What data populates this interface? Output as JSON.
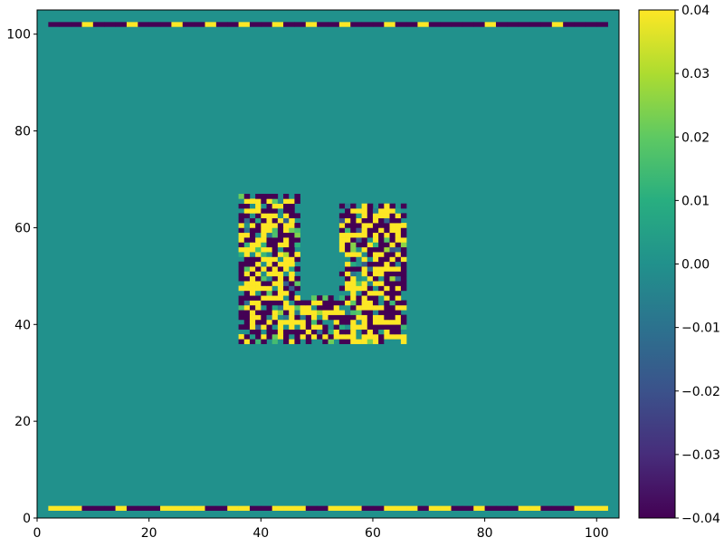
{
  "chart_data": {
    "type": "heatmap",
    "title": "",
    "xlabel": "",
    "ylabel": "",
    "xlim": [
      0,
      104
    ],
    "ylim": [
      0,
      105
    ],
    "xticks": [
      0,
      20,
      40,
      60,
      80,
      100
    ],
    "xtick_labels": [
      "0",
      "20",
      "40",
      "60",
      "80",
      "100"
    ],
    "yticks": [
      0,
      20,
      40,
      60,
      80,
      100
    ],
    "ytick_labels": [
      "0",
      "20",
      "40",
      "60",
      "80",
      "100"
    ],
    "background_value": 0.0,
    "colormap": "viridis",
    "colorbar": {
      "vmin": -0.04,
      "vmax": 0.04,
      "ticks": [
        -0.04,
        -0.03,
        -0.02,
        -0.01,
        0.0,
        0.01,
        0.02,
        0.03,
        0.04
      ],
      "tick_labels": [
        "−0.04",
        "−0.03",
        "−0.02",
        "−0.01",
        "0.00",
        "0.01",
        "0.02",
        "0.03",
        "0.04"
      ],
      "placement": "right"
    },
    "boundary_rows": [
      {
        "name": "top",
        "y": 102,
        "x_start": 2,
        "x_end": 102,
        "values": [
          -0.04,
          -0.04,
          -0.04,
          0.04,
          -0.04,
          -0.04,
          -0.04,
          0.04,
          -0.04,
          -0.04,
          -0.04,
          0.04,
          -0.04,
          -0.04,
          0.04,
          -0.04,
          -0.04,
          0.04,
          -0.04,
          -0.04,
          0.04,
          -0.04,
          -0.04,
          0.04,
          -0.04,
          -0.04,
          0.04,
          -0.04,
          -0.04,
          -0.04,
          0.04,
          -0.04,
          -0.04,
          0.04,
          -0.04,
          -0.04,
          -0.04,
          -0.04,
          -0.04,
          0.04,
          -0.04,
          -0.04,
          -0.04,
          -0.04,
          -0.04,
          0.04,
          -0.04,
          -0.04,
          -0.04,
          -0.04
        ]
      },
      {
        "name": "bottom",
        "y": 2,
        "x_start": 2,
        "x_end": 102,
        "values": [
          0.04,
          0.04,
          0.04,
          -0.04,
          -0.04,
          -0.04,
          0.04,
          -0.04,
          -0.04,
          -0.04,
          0.04,
          0.04,
          0.04,
          0.04,
          -0.04,
          -0.04,
          0.04,
          0.04,
          -0.04,
          -0.04,
          0.04,
          0.04,
          0.04,
          -0.04,
          -0.04,
          0.04,
          0.04,
          0.04,
          -0.04,
          -0.04,
          0.04,
          0.04,
          0.04,
          -0.04,
          0.04,
          0.04,
          -0.04,
          -0.04,
          0.04,
          -0.04,
          -0.04,
          -0.04,
          0.04,
          0.04,
          -0.04,
          -0.04,
          -0.04,
          0.04,
          0.04,
          0.04
        ]
      }
    ],
    "noise_region": {
      "shape": "U",
      "left_arm": {
        "x": [
          36,
          46
        ],
        "y": [
          36,
          66
        ]
      },
      "right_arm": {
        "x": [
          54,
          65
        ],
        "y": [
          36,
          64
        ]
      },
      "base": {
        "x": [
          36,
          65
        ],
        "y": [
          36,
          45
        ]
      },
      "values": "random mix of -0.04, 0.04 and intermediate values"
    }
  }
}
